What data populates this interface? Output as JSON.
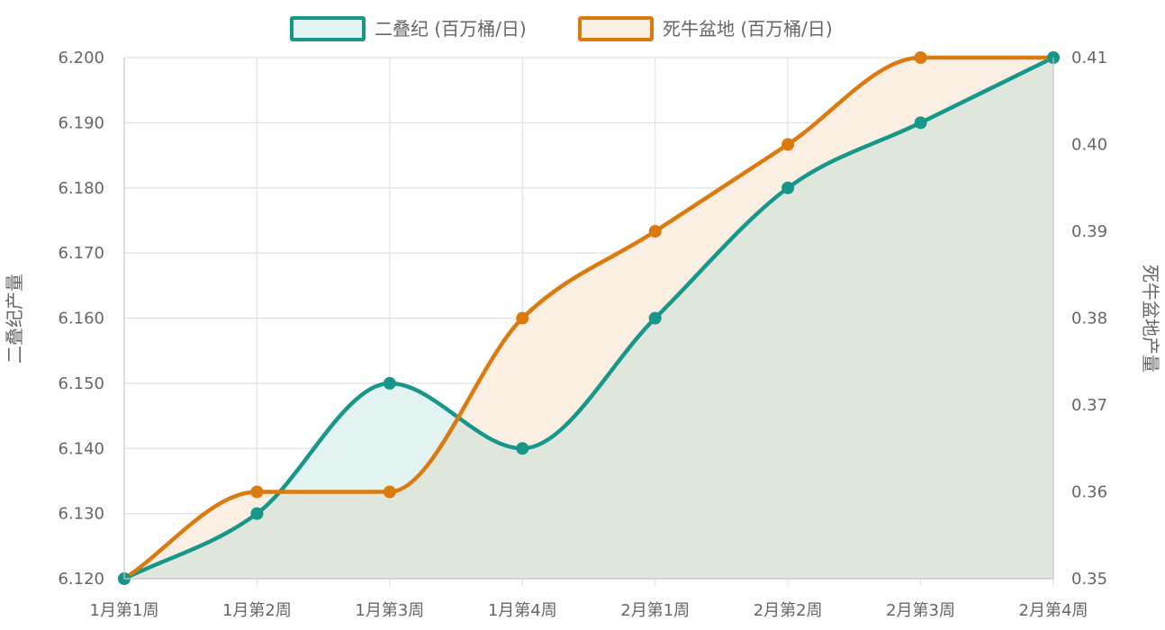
{
  "chart_data": {
    "type": "area",
    "categories": [
      "1月第1周",
      "1月第2周",
      "1月第3周",
      "1月第4周",
      "2月第1周",
      "2月第2周",
      "2月第3周",
      "2月第4周"
    ],
    "series": [
      {
        "name": "二叠纪 (百万桶/日)",
        "axis": "left",
        "color": "#16978a",
        "fill": "#e3f3f1",
        "values": [
          6.12,
          6.13,
          6.15,
          6.14,
          6.16,
          6.18,
          6.19,
          6.2
        ]
      },
      {
        "name": "死牛盆地 (百万桶/日)",
        "axis": "right",
        "color": "#da7a0f",
        "fill": "#fbefe3",
        "values": [
          0.35,
          0.36,
          0.36,
          0.38,
          0.39,
          0.4,
          0.41,
          0.41
        ]
      }
    ],
    "y_left": {
      "label": "二叠纪产量",
      "ylim": [
        6.12,
        6.2
      ],
      "ticks": [
        "6.200",
        "6.190",
        "6.180",
        "6.170",
        "6.160",
        "6.150",
        "6.140",
        "6.130",
        "6.120"
      ]
    },
    "y_right": {
      "label": "死牛盆地产量",
      "ylim": [
        0.35,
        0.41
      ],
      "ticks": [
        "0.41",
        "0.40",
        "0.39",
        "0.38",
        "0.37",
        "0.36",
        "0.35"
      ]
    },
    "grid": true,
    "legend_position": "top-center"
  },
  "colors": {
    "grid": "#e2e2e2",
    "axis": "#c8c8c8",
    "overlap": "#dfe6dc"
  }
}
